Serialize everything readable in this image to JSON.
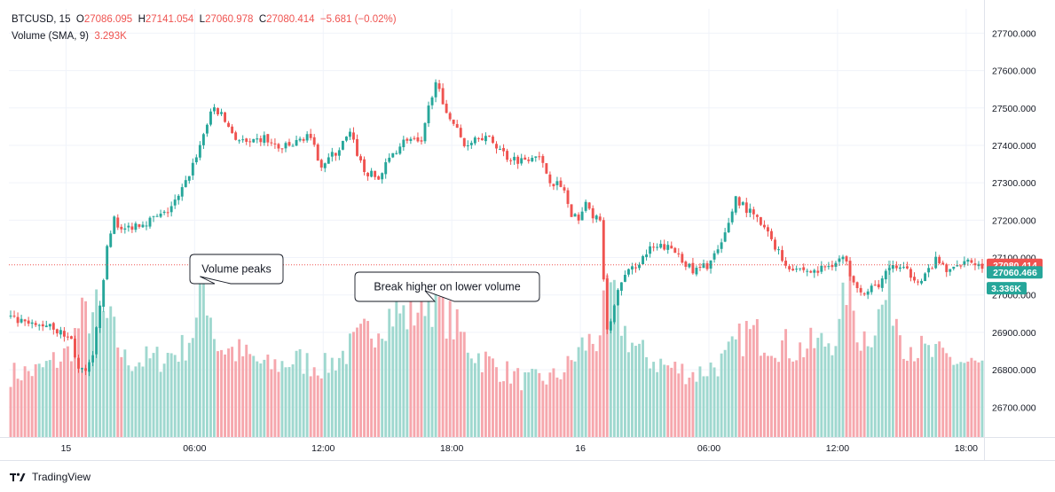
{
  "legend": {
    "symbol": "BTCUSD, 15",
    "open_label": "O",
    "open": "27086.095",
    "high_label": "H",
    "high": "27141.054",
    "low_label": "L",
    "low": "27060.978",
    "close_label": "C",
    "close": "27080.414",
    "change": "−5.681 (−0.02%)",
    "volume_label": "Volume (SMA, 9)",
    "volume_value": "3.293K"
  },
  "annotations": [
    {
      "text": "Volume peaks",
      "points_to": {
        "x_index": 53,
        "volume": 2.25
      }
    },
    {
      "text": "Break higher on lower volume",
      "points_to": {
        "x_index": 116,
        "volume": 2.05
      }
    }
  ],
  "price_tags": {
    "last": "27080.414",
    "second": "27060.466",
    "volume": "3.336K"
  },
  "footer": {
    "brand": "TradingView"
  },
  "colors": {
    "up": "#26a69a",
    "down": "#ef5350",
    "up_volume": "#9fd8cf",
    "down_volume": "#f6a7ad",
    "grid": "#f0f3fa",
    "text": "#131722"
  },
  "chart_data": {
    "type": "candlestick",
    "symbol": "BTCUSD",
    "interval": "15",
    "y_ticks": [
      26700,
      26800,
      26900,
      27000,
      27100,
      27200,
      27300,
      27400,
      27500,
      27600,
      27700
    ],
    "y_tick_labels": [
      "26700.000",
      "26800.000",
      "26900.000",
      "27000.000",
      "27100.000",
      "27200.000",
      "27300.000",
      "27400.000",
      "27500.000",
      "27600.000",
      "27700.000"
    ],
    "y_range": [
      26620,
      27765
    ],
    "x_ticks": [
      {
        "index": 16,
        "label": "15"
      },
      {
        "index": 52,
        "label": "06:00"
      },
      {
        "index": 88,
        "label": "12:00"
      },
      {
        "index": 124,
        "label": "18:00"
      },
      {
        "index": 160,
        "label": "16"
      },
      {
        "index": 196,
        "label": "06:00"
      },
      {
        "index": 232,
        "label": "12:00"
      },
      {
        "index": 268,
        "label": "18:00"
      }
    ],
    "x_range": [
      0,
      273
    ],
    "volume_scale_max": 6.0,
    "anchors": [
      [
        0,
        26940
      ],
      [
        4,
        26925
      ],
      [
        8,
        26915
      ],
      [
        12,
        26925
      ],
      [
        14,
        26905
      ],
      [
        18,
        26880
      ],
      [
        20,
        26800
      ],
      [
        22,
        26790
      ],
      [
        24,
        26830
      ],
      [
        26,
        26980
      ],
      [
        28,
        27120
      ],
      [
        30,
        27210
      ],
      [
        32,
        27170
      ],
      [
        36,
        27190
      ],
      [
        40,
        27200
      ],
      [
        44,
        27215
      ],
      [
        48,
        27260
      ],
      [
        50,
        27300
      ],
      [
        54,
        27400
      ],
      [
        56,
        27460
      ],
      [
        58,
        27500
      ],
      [
        60,
        27480
      ],
      [
        64,
        27420
      ],
      [
        68,
        27400
      ],
      [
        72,
        27420
      ],
      [
        76,
        27390
      ],
      [
        80,
        27400
      ],
      [
        84,
        27430
      ],
      [
        88,
        27350
      ],
      [
        92,
        27380
      ],
      [
        96,
        27430
      ],
      [
        100,
        27330
      ],
      [
        104,
        27310
      ],
      [
        108,
        27380
      ],
      [
        112,
        27420
      ],
      [
        116,
        27400
      ],
      [
        118,
        27500
      ],
      [
        120,
        27580
      ],
      [
        122,
        27500
      ],
      [
        124,
        27480
      ],
      [
        128,
        27400
      ],
      [
        132,
        27430
      ],
      [
        136,
        27410
      ],
      [
        140,
        27370
      ],
      [
        144,
        27360
      ],
      [
        148,
        27380
      ],
      [
        152,
        27310
      ],
      [
        156,
        27280
      ],
      [
        158,
        27200
      ],
      [
        160,
        27210
      ],
      [
        162,
        27240
      ],
      [
        166,
        27190
      ],
      [
        168,
        26900
      ],
      [
        170,
        26970
      ],
      [
        172,
        27040
      ],
      [
        176,
        27080
      ],
      [
        180,
        27120
      ],
      [
        184,
        27130
      ],
      [
        188,
        27110
      ],
      [
        192,
        27060
      ],
      [
        196,
        27080
      ],
      [
        200,
        27130
      ],
      [
        204,
        27260
      ],
      [
        206,
        27240
      ],
      [
        210,
        27200
      ],
      [
        214,
        27150
      ],
      [
        218,
        27080
      ],
      [
        222,
        27070
      ],
      [
        226,
        27060
      ],
      [
        230,
        27080
      ],
      [
        234,
        27100
      ],
      [
        236,
        27060
      ],
      [
        240,
        27000
      ],
      [
        244,
        27030
      ],
      [
        248,
        27080
      ],
      [
        252,
        27060
      ],
      [
        256,
        27040
      ],
      [
        260,
        27090
      ],
      [
        264,
        27060
      ],
      [
        268,
        27100
      ],
      [
        272,
        27080
      ]
    ],
    "volume_anchors": [
      [
        0,
        0.9
      ],
      [
        8,
        0.95
      ],
      [
        16,
        1.2
      ],
      [
        20,
        1.7
      ],
      [
        24,
        1.8
      ],
      [
        28,
        1.6
      ],
      [
        32,
        1.1
      ],
      [
        40,
        1.1
      ],
      [
        48,
        1.25
      ],
      [
        52,
        1.6
      ],
      [
        54,
        2.25
      ],
      [
        58,
        1.3
      ],
      [
        64,
        1.2
      ],
      [
        72,
        1.0
      ],
      [
        80,
        1.1
      ],
      [
        88,
        1.0
      ],
      [
        96,
        1.3
      ],
      [
        104,
        1.7
      ],
      [
        108,
        1.8
      ],
      [
        112,
        1.7
      ],
      [
        116,
        2.05
      ],
      [
        120,
        1.9
      ],
      [
        124,
        1.6
      ],
      [
        130,
        1.2
      ],
      [
        136,
        1.0
      ],
      [
        144,
        0.8
      ],
      [
        152,
        0.85
      ],
      [
        156,
        1.0
      ],
      [
        160,
        1.3
      ],
      [
        164,
        1.4
      ],
      [
        168,
        2.1
      ],
      [
        172,
        1.5
      ],
      [
        176,
        1.2
      ],
      [
        184,
        1.0
      ],
      [
        192,
        0.9
      ],
      [
        200,
        1.1
      ],
      [
        206,
        1.5
      ],
      [
        212,
        1.4
      ],
      [
        220,
        1.25
      ],
      [
        228,
        1.35
      ],
      [
        232,
        1.5
      ],
      [
        234,
        2.2
      ],
      [
        238,
        1.4
      ],
      [
        242,
        1.6
      ],
      [
        246,
        2.1
      ],
      [
        250,
        1.4
      ],
      [
        256,
        1.2
      ],
      [
        264,
        1.1
      ],
      [
        272,
        1.0
      ]
    ]
  }
}
